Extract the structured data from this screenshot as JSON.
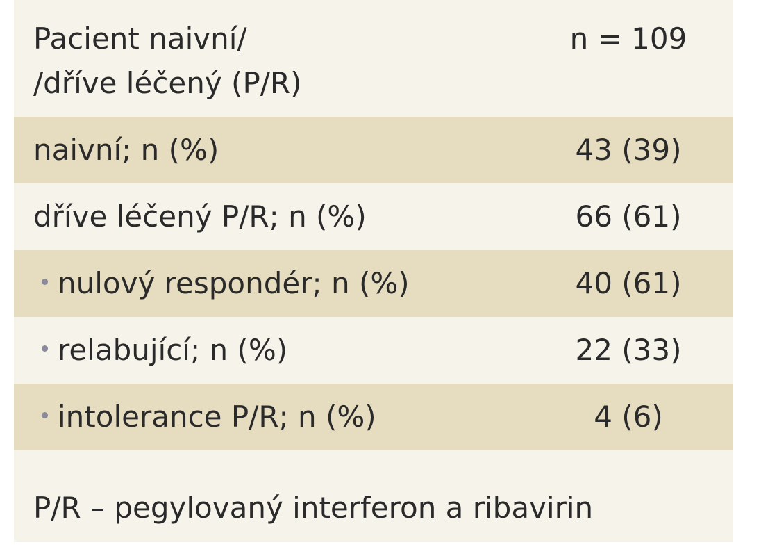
{
  "table": {
    "header": {
      "label_line1": "Pacient naivní/",
      "label_line2": "/dříve léčený (P/R)",
      "value": "n = 109"
    },
    "rows": [
      {
        "label": "naivní; n (%)",
        "value": "43 (39)",
        "indented": false
      },
      {
        "label": "dříve léčený P/R; n (%)",
        "value": "66 (61)",
        "indented": false
      },
      {
        "label": "nulový respondér; n (%)",
        "value": "40 (61)",
        "indented": true
      },
      {
        "label": "relabující; n (%)",
        "value": "22 (33)",
        "indented": true
      },
      {
        "label": "intolerance P/R; n (%)",
        "value": "4 (6)",
        "indented": true
      }
    ],
    "footnote": "P/R – pegylovaný interferon a ribavirin"
  },
  "colors": {
    "background": "#f6f3ea",
    "shaded_row": "#e6dcc0",
    "text": "#2a2a2a",
    "bullet": "#8a8a9a"
  }
}
